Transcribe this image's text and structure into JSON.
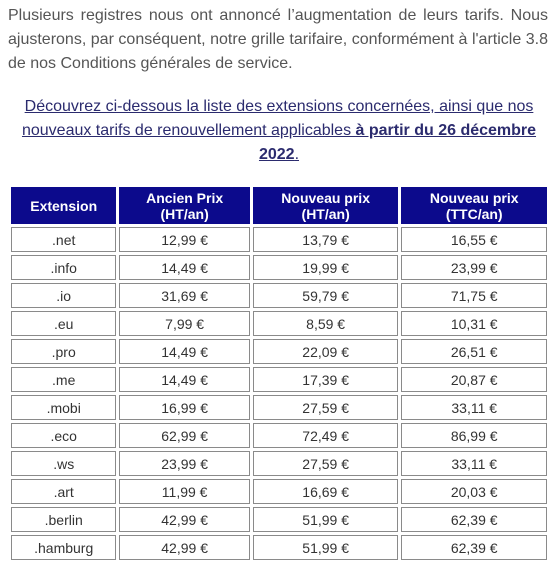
{
  "intro": "Plusieurs registres nous ont annoncé l’augmentation de leurs tarifs. Nous ajusterons, par conséquent, notre grille tarifaire, conformément à l'article 3.8 de nos Conditions générales de service.",
  "notice": {
    "text": "Découvrez ci-dessous la liste des extensions concernées, ainsi que nos nouveaux tarifs de renouvellement applicables ",
    "bold": "à partir du 26 décembre 2022",
    "end": "."
  },
  "table": {
    "headers": [
      [
        "Extension"
      ],
      [
        "Ancien Prix",
        "(HT/an)"
      ],
      [
        "Nouveau prix",
        "(HT/an)"
      ],
      [
        "Nouveau prix",
        "(TTC/an)"
      ]
    ],
    "rows": [
      [
        ".net",
        "12,99 €",
        "13,79 €",
        "16,55 €"
      ],
      [
        ".info",
        "14,49 €",
        "19,99 €",
        "23,99 €"
      ],
      [
        ".io",
        "31,69 €",
        "59,79 €",
        "71,75 €"
      ],
      [
        ".eu",
        "7,99 €",
        "8,59 €",
        "10,31 €"
      ],
      [
        ".pro",
        "14,49 €",
        "22,09 €",
        "26,51 €"
      ],
      [
        ".me",
        "14,49 €",
        "17,39 €",
        "20,87 €"
      ],
      [
        ".mobi",
        "16,99 €",
        "27,59 €",
        "33,11 €"
      ],
      [
        ".eco",
        "62,99 €",
        "72,49 €",
        "86,99 €"
      ],
      [
        ".ws",
        "23,99 €",
        "27,59 €",
        "33,11 €"
      ],
      [
        ".art",
        "11,99 €",
        "16,69 €",
        "20,03 €"
      ],
      [
        ".berlin",
        "42,99 €",
        "51,99 €",
        "62,39 €"
      ],
      [
        ".hamburg",
        "42,99 €",
        "51,99 €",
        "62,39 €"
      ]
    ]
  }
}
